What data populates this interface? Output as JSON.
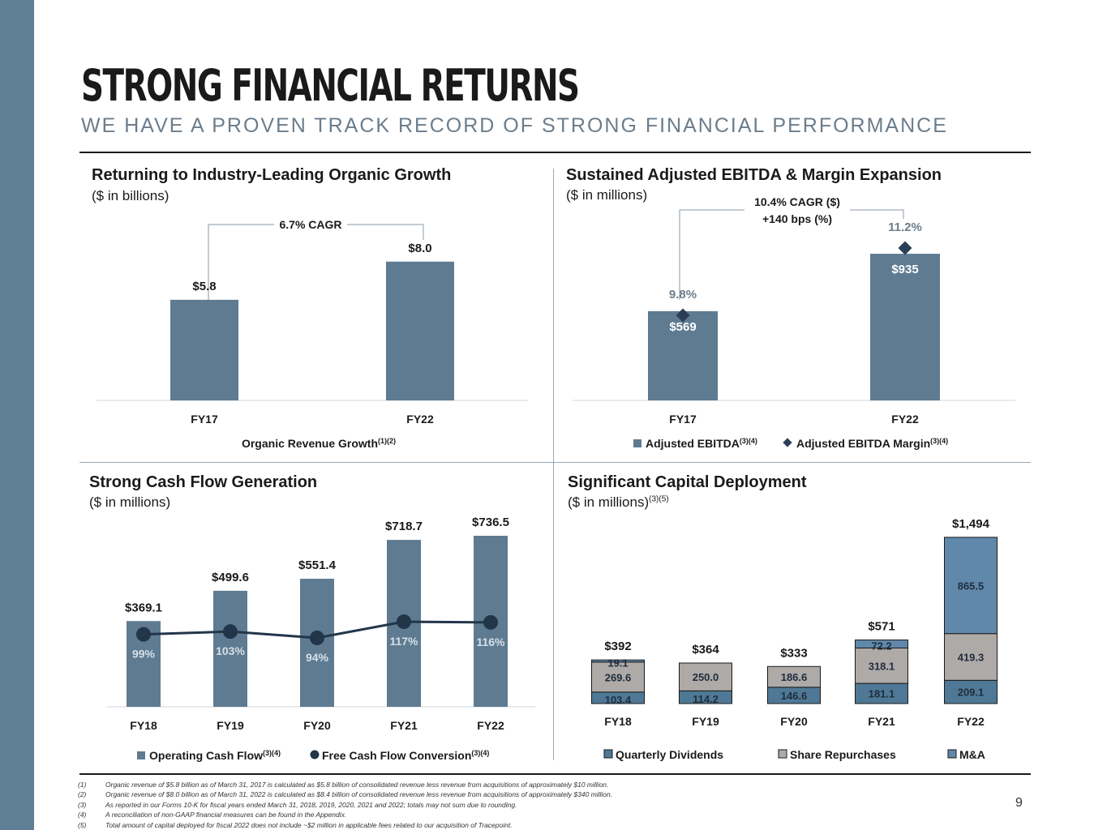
{
  "header": {
    "title": "STRONG FINANCIAL RETURNS",
    "subtitle": "WE HAVE A PROVEN TRACK RECORD OF STRONG FINANCIAL PERFORMANCE"
  },
  "colors": {
    "bar": "#5e7b91",
    "dividends": "#4f7896",
    "repurchases": "#aeaaa8",
    "mna": "#6088aa",
    "line": "#22364a",
    "band": "#5e7f96"
  },
  "panels": {
    "organic": {
      "title": "Returning to Industry-Leading Organic Growth",
      "unit": "($ in billions)",
      "cagr": "6.7% CAGR",
      "legend": "Organic Revenue Growth",
      "legend_sup": "(1)(2)"
    },
    "ebitda": {
      "title": "Sustained Adjusted EBITDA & Margin Expansion",
      "unit": "($ in millions)",
      "cagr_line1": "10.4% CAGR ($)",
      "cagr_line2": "+140 bps (%)",
      "legend_bar": "Adjusted EBITDA",
      "legend_bar_sup": "(3)(4)",
      "legend_marker": "Adjusted EBITDA Margin",
      "legend_marker_sup": "(3)(4)"
    },
    "cash": {
      "title": "Strong Cash Flow Generation",
      "unit": "($ in millions)",
      "legend_bar": "Operating Cash Flow",
      "legend_bar_sup": "(3)(4)",
      "legend_line": "Free Cash Flow Conversion",
      "legend_line_sup": "(3)(4)"
    },
    "capital": {
      "title": "Significant Capital Deployment",
      "unit": "($ in millions)",
      "unit_sup": "(3)(5)"
    }
  },
  "chart_data": [
    {
      "type": "bar",
      "categories": [
        "FY17",
        "FY22"
      ],
      "values": [
        5.8,
        8.0
      ],
      "value_labels": [
        "$5.8",
        "$8.0"
      ],
      "series": [
        {
          "name": "Organic Revenue Growth",
          "values": [
            5.8,
            8.0
          ]
        }
      ],
      "ylim": [
        0,
        9.5
      ],
      "annotations": [
        "6.7% CAGR"
      ]
    },
    {
      "type": "bar",
      "categories": [
        "FY17",
        "FY22"
      ],
      "series": [
        {
          "name": "Adjusted EBITDA",
          "values": [
            569,
            935
          ],
          "labels": [
            "$569",
            "$935"
          ]
        },
        {
          "name": "Adjusted EBITDA Margin",
          "values": [
            9.8,
            11.2
          ],
          "labels": [
            "9.8%",
            "11.2%"
          ]
        }
      ],
      "ylim": [
        0,
        1050
      ],
      "annotations": [
        "10.4% CAGR ($)",
        "+140 bps (%)"
      ]
    },
    {
      "type": "bar",
      "categories": [
        "FY18",
        "FY19",
        "FY20",
        "FY21",
        "FY22"
      ],
      "series": [
        {
          "name": "Operating Cash Flow",
          "values": [
            369.1,
            499.6,
            551.4,
            718.7,
            736.5
          ],
          "labels": [
            "$369.1",
            "$499.6",
            "$551.4",
            "$718.7",
            "$736.5"
          ]
        },
        {
          "name": "Free Cash Flow Conversion",
          "values": [
            99,
            103,
            94,
            117,
            116
          ],
          "labels": [
            "99%",
            "103%",
            "94%",
            "117%",
            "116%"
          ]
        }
      ],
      "ylim": [
        0,
        860
      ]
    },
    {
      "type": "bar",
      "stacked": true,
      "categories": [
        "FY18",
        "FY19",
        "FY20",
        "FY21",
        "FY22"
      ],
      "totals": [
        392,
        364,
        333,
        571,
        1494
      ],
      "total_labels": [
        "$392",
        "$364",
        "$333",
        "$571",
        "$1,494"
      ],
      "series": [
        {
          "name": "Quarterly Dividends",
          "values": [
            103.4,
            114.2,
            146.6,
            181.1,
            209.1
          ],
          "labels": [
            "103.4",
            "114.2",
            "146.6",
            "181.1",
            "209.1"
          ]
        },
        {
          "name": "Share Repurchases",
          "values": [
            269.6,
            250.0,
            186.6,
            318.1,
            419.3
          ],
          "labels": [
            "269.6",
            "250.0",
            "186.6",
            "318.1",
            "419.3"
          ]
        },
        {
          "name": "M&A",
          "values": [
            19.1,
            0,
            0,
            72.2,
            865.5
          ],
          "labels": [
            "19.1",
            "",
            "",
            "72.2",
            "865.5"
          ]
        }
      ],
      "ylim": [
        0,
        1640
      ]
    }
  ],
  "footnotes": [
    {
      "num": "(1)",
      "text": "Organic revenue of $5.8 billion as of March 31, 2017 is calculated as $5.8 billion of consolidated revenue less revenue from acquisitions of approximately $10 million."
    },
    {
      "num": "(2)",
      "text": "Organic revenue of $8.0 billion as of March 31, 2022 is calculated as $8.4 billion of consolidated revenue less revenue from acquisitions of approximately $340 million."
    },
    {
      "num": "(3)",
      "text": "As reported in our Forms 10-K for fiscal years ended March 31, 2018, 2019, 2020, 2021 and 2022; totals may not sum due to rounding."
    },
    {
      "num": "(4)",
      "text": "A reconciliation of non-GAAP financial measures can be found in the Appendix."
    },
    {
      "num": "(5)",
      "text": "Total amount of capital deployed for fiscal 2022 does not include ~$2 million in applicable fees related to our acquisition of Tracepoint."
    }
  ],
  "page_number": "9"
}
